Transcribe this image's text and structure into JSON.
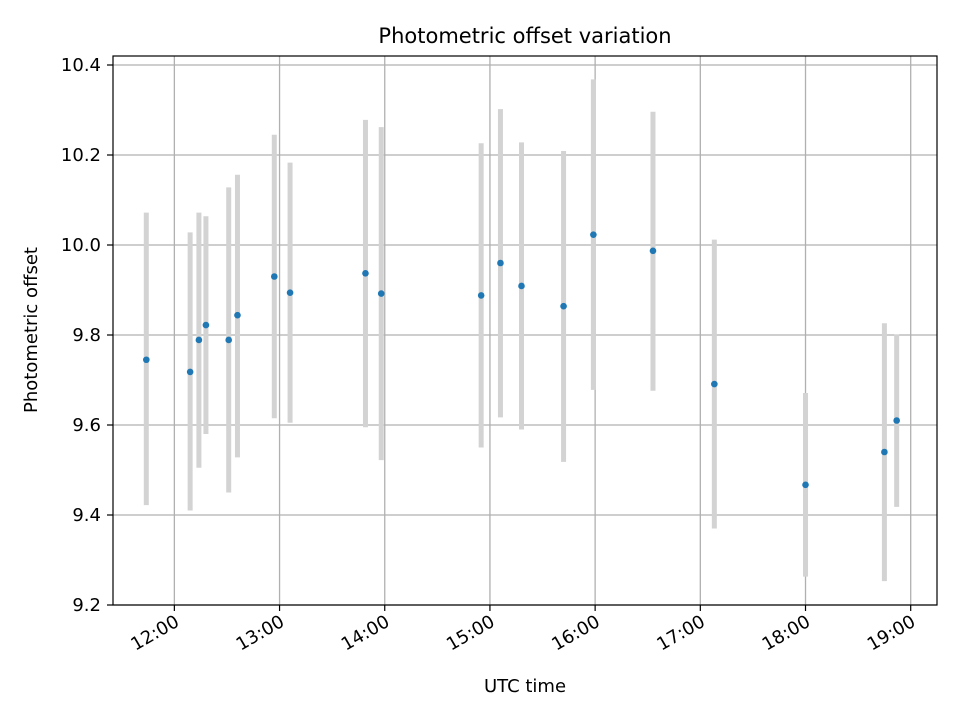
{
  "chart_data": {
    "type": "scatter",
    "title": "Photometric offset variation",
    "xlabel": "UTC time",
    "ylabel": "Photometric offset",
    "x_unit": "hours UTC",
    "xlim": [
      "11:25",
      "19:15"
    ],
    "ylim": [
      9.2,
      10.42
    ],
    "x_ticks": [
      "12:00",
      "13:00",
      "14:00",
      "15:00",
      "16:00",
      "17:00",
      "18:00",
      "19:00"
    ],
    "y_ticks": [
      "9.2",
      "9.4",
      "9.6",
      "9.8",
      "10.0",
      "10.2",
      "10.4"
    ],
    "grid": true,
    "legend": "none",
    "colors": {
      "marker": "#1f77b4",
      "errorbar": "#d3d3d3",
      "grid": "#b0b0b0"
    },
    "series": [
      {
        "points": [
          {
            "x": "11:44",
            "y": 9.745,
            "err_low": 9.422,
            "err_high": 10.072
          },
          {
            "x": "12:09",
            "y": 9.718,
            "err_low": 9.41,
            "err_high": 10.028
          },
          {
            "x": "12:14",
            "y": 9.789,
            "err_low": 9.505,
            "err_high": 10.072
          },
          {
            "x": "12:18",
            "y": 9.822,
            "err_low": 9.58,
            "err_high": 10.064
          },
          {
            "x": "12:31",
            "y": 9.789,
            "err_low": 9.45,
            "err_high": 10.128
          },
          {
            "x": "12:36",
            "y": 9.844,
            "err_low": 9.528,
            "err_high": 10.156
          },
          {
            "x": "12:57",
            "y": 9.93,
            "err_low": 9.615,
            "err_high": 10.245
          },
          {
            "x": "13:06",
            "y": 9.894,
            "err_low": 9.605,
            "err_high": 10.183
          },
          {
            "x": "13:49",
            "y": 9.937,
            "err_low": 9.595,
            "err_high": 10.278
          },
          {
            "x": "13:58",
            "y": 9.892,
            "err_low": 9.522,
            "err_high": 10.262
          },
          {
            "x": "14:55",
            "y": 9.888,
            "err_low": 9.55,
            "err_high": 10.226
          },
          {
            "x": "15:06",
            "y": 9.96,
            "err_low": 9.617,
            "err_high": 10.302
          },
          {
            "x": "15:18",
            "y": 9.909,
            "err_low": 9.59,
            "err_high": 10.228
          },
          {
            "x": "15:42",
            "y": 9.864,
            "err_low": 9.518,
            "err_high": 10.209
          },
          {
            "x": "15:59",
            "y": 10.023,
            "err_low": 9.678,
            "err_high": 10.368
          },
          {
            "x": "16:33",
            "y": 9.987,
            "err_low": 9.676,
            "err_high": 10.296
          },
          {
            "x": "17:08",
            "y": 9.691,
            "err_low": 9.37,
            "err_high": 10.012
          },
          {
            "x": "18:00",
            "y": 9.467,
            "err_low": 9.263,
            "err_high": 9.671
          },
          {
            "x": "18:45",
            "y": 9.54,
            "err_low": 9.253,
            "err_high": 9.826
          },
          {
            "x": "18:52",
            "y": 9.61,
            "err_low": 9.418,
            "err_high": 9.801
          }
        ]
      }
    ]
  }
}
